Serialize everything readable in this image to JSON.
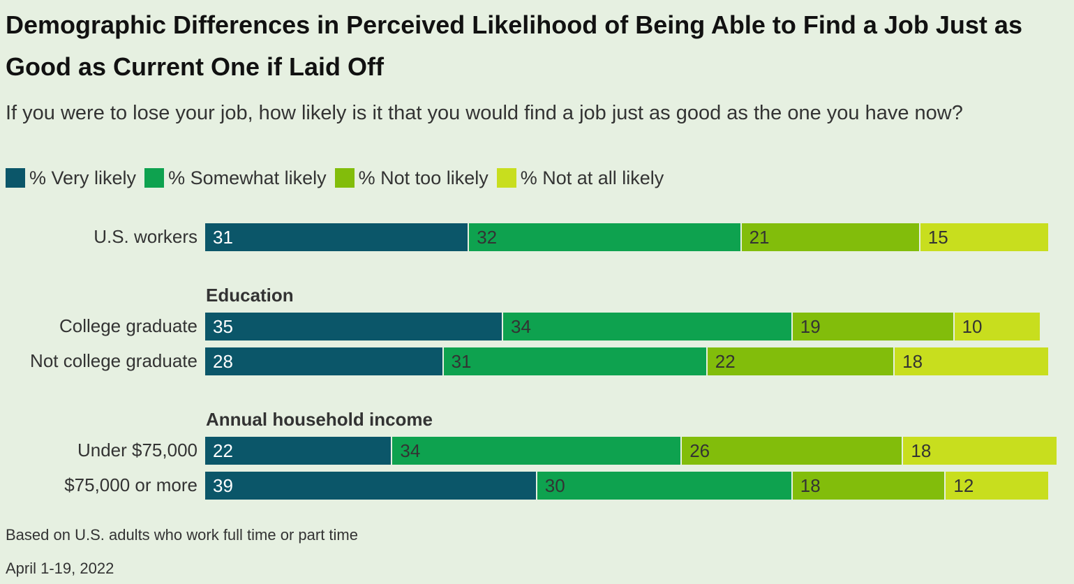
{
  "title": "Demographic Differences in Perceived Likelihood of Being Able to Find a Job Just as Good as Current One if Laid Off",
  "subtitle": "If you were to lose your job, how likely is it that you would find a job just as good as the one you have now?",
  "legend": [
    "% Very likely",
    "% Somewhat likely",
    "% Not too likely",
    "% Not at all likely"
  ],
  "colors": {
    "very_likely": "#0b5669",
    "somewhat_likely": "#0ea24f",
    "not_too_likely": "#82bd0b",
    "not_at_all_likely": "#c8de1e",
    "background": "#e6f0e1"
  },
  "text_colors": [
    "#ffffff",
    "#333333",
    "#333333",
    "#333333"
  ],
  "chart_data": {
    "type": "bar",
    "orientation": "horizontal",
    "stacked": true,
    "xlim": [
      0,
      100
    ],
    "series_names": [
      "% Very likely",
      "% Somewhat likely",
      "% Not too likely",
      "% Not at all likely"
    ],
    "groups": [
      {
        "heading": "",
        "rows": [
          {
            "label": "U.S. workers",
            "values": [
              31,
              32,
              21,
              15
            ]
          }
        ]
      },
      {
        "heading": "Education",
        "rows": [
          {
            "label": "College graduate",
            "values": [
              35,
              34,
              19,
              10
            ]
          },
          {
            "label": "Not college graduate",
            "values": [
              28,
              31,
              22,
              18
            ]
          }
        ]
      },
      {
        "heading": "Annual household income",
        "rows": [
          {
            "label": "Under $75,000",
            "values": [
              22,
              34,
              26,
              18
            ]
          },
          {
            "label": "$75,000 or more",
            "values": [
              39,
              30,
              18,
              12
            ]
          }
        ]
      }
    ]
  },
  "footnotes": [
    "Based on U.S. adults who work full time or part time",
    "April 1-19, 2022"
  ]
}
